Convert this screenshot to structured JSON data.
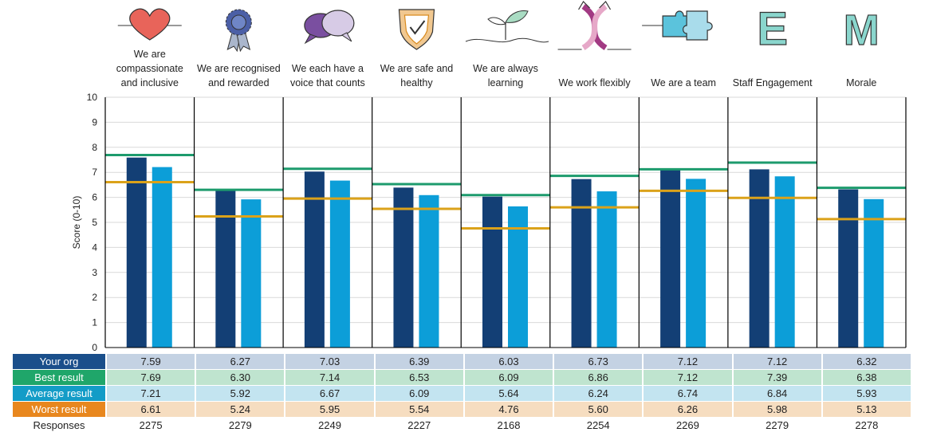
{
  "chart_data": {
    "type": "bar",
    "categories": [
      {
        "line1": "We are",
        "line2": "compassionate",
        "line3": "and inclusive",
        "icon": "heart-icon"
      },
      {
        "line1": "",
        "line2": "We are recognised",
        "line3": "and rewarded",
        "icon": "rosette-icon"
      },
      {
        "line1": "",
        "line2": "We each have a",
        "line3": "voice that counts",
        "icon": "speech-bubbles-icon"
      },
      {
        "line1": "",
        "line2": "We are safe and",
        "line3": "healthy",
        "icon": "shield-check-icon"
      },
      {
        "line1": "",
        "line2": "We are always",
        "line3": "learning",
        "icon": "seedling-icon"
      },
      {
        "line1": "",
        "line2": "",
        "line3": "We work flexibly",
        "icon": "twisting-arrows-icon"
      },
      {
        "line1": "",
        "line2": "",
        "line3": "We are a team",
        "icon": "puzzle-icon"
      },
      {
        "line1": "",
        "line2": "",
        "line3": "Staff Engagement",
        "icon": "letter-e-icon"
      },
      {
        "line1": "",
        "line2": "",
        "line3": "Morale",
        "icon": "letter-m-icon"
      }
    ],
    "series": [
      {
        "name": "Your org",
        "kind": "bar",
        "color": "#133f75",
        "values": [
          7.59,
          6.27,
          7.03,
          6.39,
          6.03,
          6.73,
          7.12,
          7.12,
          6.32
        ]
      },
      {
        "name": "Best result",
        "kind": "line",
        "color": "#1d9b6d",
        "values": [
          7.69,
          6.3,
          7.14,
          6.53,
          6.09,
          6.86,
          7.12,
          7.39,
          6.38
        ]
      },
      {
        "name": "Average result",
        "kind": "bar",
        "color": "#0c9ed8",
        "values": [
          7.21,
          5.92,
          6.67,
          6.09,
          5.64,
          6.24,
          6.74,
          6.84,
          5.93
        ]
      },
      {
        "name": "Worst result",
        "kind": "line",
        "color": "#dba21a",
        "values": [
          6.61,
          5.24,
          5.95,
          5.54,
          4.76,
          5.6,
          6.26,
          5.98,
          5.13
        ]
      }
    ],
    "responses": [
      2275,
      2279,
      2249,
      2227,
      2168,
      2254,
      2269,
      2279,
      2278
    ],
    "ylabel": "Score (0-10)",
    "ylim": [
      0,
      10
    ],
    "yticks": [
      0,
      1,
      2,
      3,
      4,
      5,
      6,
      7,
      8,
      9,
      10
    ]
  },
  "table": {
    "labels": {
      "org": "Your org",
      "best": "Best result",
      "avg": "Average result",
      "worst": "Worst result",
      "responses": "Responses"
    },
    "colors": {
      "org": "#1a4f8b",
      "best": "#1fa66a",
      "avg": "#139cc7",
      "worst": "#e8871e"
    }
  }
}
